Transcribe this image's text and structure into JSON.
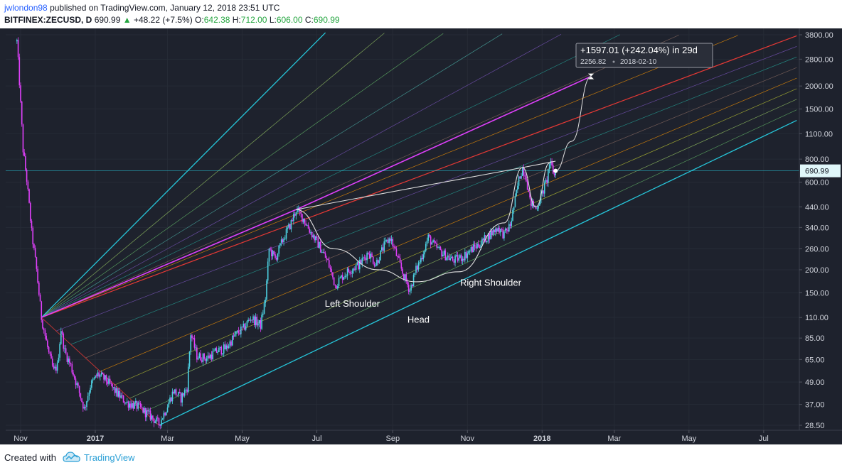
{
  "header": {
    "author": "jwlondon98",
    "published_text": "published on TradingView.com, January 12, 2018 23:51 UTC",
    "symbol": "BITFINEX:ZECUSD, D",
    "last": "690.99",
    "change_arrow": "▲",
    "change": "+48.22 (+7.5%)",
    "o_label": "O:",
    "o_value": "642.38",
    "h_label": "H:",
    "h_value": "712.00",
    "l_label": "L:",
    "l_value": "606.00",
    "c_label": "C:",
    "c_value": "690.99"
  },
  "footer": {
    "created_with": "Created with",
    "brand": "TradingView",
    "logo_icon": "tradingview-cloud-icon"
  },
  "colors": {
    "background": "#1e222d",
    "up": "#4dd0e1",
    "down": "#e040fb",
    "channel": "#26c6da",
    "upper_line": "#e040fb",
    "median": "#e53935",
    "pattern": "#e0e0e0"
  },
  "chart_data": {
    "type": "candlestick",
    "symbol": "BITFINEX:ZECUSD",
    "interval": "D",
    "scale": "log",
    "y_ticks": [
      3800,
      2800,
      2000,
      1500,
      1100,
      800,
      600,
      440,
      340,
      260,
      200,
      150,
      110,
      85,
      65,
      49,
      37,
      28.5
    ],
    "y_tick_labels": [
      "3800.00",
      "2800.00",
      "2000.00",
      "1500.00",
      "1100.00",
      "800.00",
      "600.00",
      "440.00",
      "340.00",
      "260.00",
      "200.00",
      "150.00",
      "110.00",
      "85.00",
      "65.00",
      "49.00",
      "37.00",
      "28.50"
    ],
    "x_ticks": [
      {
        "date": "2016-11-01",
        "label": "Nov"
      },
      {
        "date": "2017-01-01",
        "label": "2017"
      },
      {
        "date": "2017-03-01",
        "label": "Mar"
      },
      {
        "date": "2017-05-01",
        "label": "May"
      },
      {
        "date": "2017-07-01",
        "label": "Jul"
      },
      {
        "date": "2017-09-01",
        "label": "Sep"
      },
      {
        "date": "2017-11-01",
        "label": "Nov"
      },
      {
        "date": "2018-01-01",
        "label": "2018"
      },
      {
        "date": "2018-03-01",
        "label": "Mar"
      },
      {
        "date": "2018-05-01",
        "label": "May"
      },
      {
        "date": "2018-07-01",
        "label": "Jul"
      }
    ],
    "price_path": [
      [
        "2016-10-29",
        3500
      ],
      [
        "2016-10-31",
        2100
      ],
      [
        "2016-11-03",
        900
      ],
      [
        "2016-11-06",
        620
      ],
      [
        "2016-11-10",
        320
      ],
      [
        "2016-11-14",
        200
      ],
      [
        "2016-11-18",
        110
      ],
      [
        "2016-11-24",
        70
      ],
      [
        "2016-11-28",
        56
      ],
      [
        "2016-12-01",
        60
      ],
      [
        "2016-12-04",
        95
      ],
      [
        "2016-12-07",
        72
      ],
      [
        "2016-12-12",
        60
      ],
      [
        "2016-12-18",
        45
      ],
      [
        "2016-12-23",
        35
      ],
      [
        "2016-12-28",
        47
      ],
      [
        "2017-01-03",
        54
      ],
      [
        "2017-01-10",
        50
      ],
      [
        "2017-01-18",
        43
      ],
      [
        "2017-01-26",
        38
      ],
      [
        "2017-02-05",
        36
      ],
      [
        "2017-02-15",
        32
      ],
      [
        "2017-02-22",
        29
      ],
      [
        "2017-02-27",
        34
      ],
      [
        "2017-03-06",
        44
      ],
      [
        "2017-03-12",
        40
      ],
      [
        "2017-03-17",
        46
      ],
      [
        "2017-03-20",
        90
      ],
      [
        "2017-03-25",
        68
      ],
      [
        "2017-04-02",
        66
      ],
      [
        "2017-04-10",
        72
      ],
      [
        "2017-04-18",
        75
      ],
      [
        "2017-04-25",
        88
      ],
      [
        "2017-05-02",
        96
      ],
      [
        "2017-05-08",
        110
      ],
      [
        "2017-05-16",
        100
      ],
      [
        "2017-05-20",
        140
      ],
      [
        "2017-05-23",
        260
      ],
      [
        "2017-05-28",
        230
      ],
      [
        "2017-06-04",
        300
      ],
      [
        "2017-06-10",
        360
      ],
      [
        "2017-06-14",
        425
      ],
      [
        "2017-06-20",
        380
      ],
      [
        "2017-06-26",
        320
      ],
      [
        "2017-07-03",
        270
      ],
      [
        "2017-07-10",
        220
      ],
      [
        "2017-07-16",
        165
      ],
      [
        "2017-07-22",
        185
      ],
      [
        "2017-07-28",
        200
      ],
      [
        "2017-08-05",
        215
      ],
      [
        "2017-08-12",
        250
      ],
      [
        "2017-08-18",
        215
      ],
      [
        "2017-08-25",
        270
      ],
      [
        "2017-08-30",
        300
      ],
      [
        "2017-09-05",
        230
      ],
      [
        "2017-09-10",
        185
      ],
      [
        "2017-09-15",
        155
      ],
      [
        "2017-09-20",
        200
      ],
      [
        "2017-09-24",
        230
      ],
      [
        "2017-09-30",
        300
      ],
      [
        "2017-10-05",
        270
      ],
      [
        "2017-10-12",
        245
      ],
      [
        "2017-10-20",
        225
      ],
      [
        "2017-10-28",
        235
      ],
      [
        "2017-11-05",
        260
      ],
      [
        "2017-11-12",
        280
      ],
      [
        "2017-11-20",
        315
      ],
      [
        "2017-11-26",
        340
      ],
      [
        "2017-12-01",
        310
      ],
      [
        "2017-12-06",
        350
      ],
      [
        "2017-12-10",
        480
      ],
      [
        "2017-12-13",
        620
      ],
      [
        "2017-12-16",
        720
      ],
      [
        "2017-12-19",
        640
      ],
      [
        "2017-12-22",
        470
      ],
      [
        "2017-12-27",
        430
      ],
      [
        "2018-01-01",
        520
      ],
      [
        "2018-01-05",
        620
      ],
      [
        "2018-01-07",
        760
      ],
      [
        "2018-01-09",
        720
      ],
      [
        "2018-01-11",
        650
      ],
      [
        "2018-01-12",
        690.99
      ]
    ],
    "current_price": 690.99,
    "current_price_label": "690.99",
    "channel": {
      "lower": [
        [
          "2017-02-22",
          28.5
        ],
        [
          "2018-07-28",
          1300
        ]
      ],
      "upper": [
        [
          "2016-11-18",
          110
        ],
        [
          "2017-06-14",
          425
        ],
        [
          "2018-02-10",
          2256.82
        ]
      ],
      "upper_extension": [
        [
          "2016-11-18",
          110
        ],
        [
          "2017-07-08",
          3900
        ]
      ],
      "median": [
        [
          "2016-11-18",
          110
        ],
        [
          "2018-07-28",
          3750
        ]
      ]
    },
    "pattern": {
      "neckline": [
        [
          "2017-06-14",
          425
        ],
        [
          "2017-12-16",
          720
        ],
        [
          "2018-01-12",
          780
        ]
      ],
      "cup": [
        [
          "2017-06-14",
          425
        ],
        [
          "2017-07-15",
          260
        ],
        [
          "2017-08-20",
          200
        ],
        [
          "2017-09-20",
          172
        ],
        [
          "2017-10-25",
          195
        ],
        [
          "2017-12-01",
          360
        ],
        [
          "2017-12-16",
          720
        ]
      ],
      "handle": [
        [
          "2017-12-16",
          720
        ],
        [
          "2017-12-27",
          440
        ],
        [
          "2018-01-07",
          760
        ]
      ],
      "projection": [
        [
          "2018-01-12",
          690.99
        ],
        [
          "2018-01-25",
          1000
        ],
        [
          "2018-02-10",
          2256.82
        ]
      ],
      "target_marker": [
        "2018-02-10",
        2256.82
      ]
    },
    "annotations": [
      {
        "text": "Left Shoulder",
        "date": "2017-07-30",
        "price": 126
      },
      {
        "text": "Head",
        "date": "2017-09-22",
        "price": 103
      },
      {
        "text": "Right Shoulder",
        "date": "2017-11-20",
        "price": 164
      }
    ],
    "measure": {
      "line1": "+1597.01 (+242.04%) in 29d",
      "value": "2256.82",
      "date": "2018-02-10"
    }
  }
}
